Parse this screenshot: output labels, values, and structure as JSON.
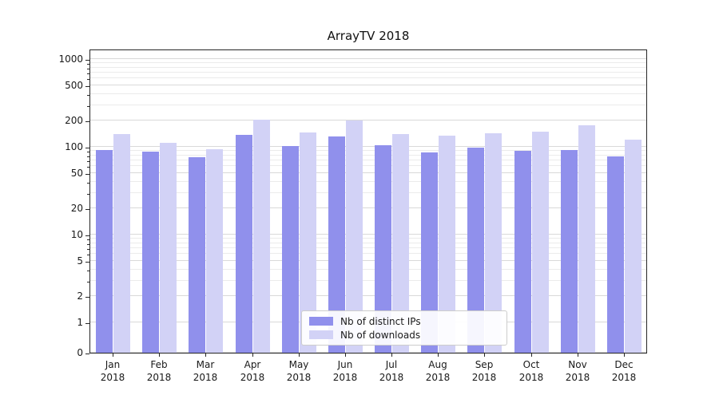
{
  "chart_data": {
    "type": "bar",
    "title": "ArrayTV 2018",
    "categories": [
      [
        "Jan",
        "2018"
      ],
      [
        "Feb",
        "2018"
      ],
      [
        "Mar",
        "2018"
      ],
      [
        "Apr",
        "2018"
      ],
      [
        "May",
        "2018"
      ],
      [
        "Jun",
        "2018"
      ],
      [
        "Jul",
        "2018"
      ],
      [
        "Aug",
        "2018"
      ],
      [
        "Sep",
        "2018"
      ],
      [
        "Oct",
        "2018"
      ],
      [
        "Nov",
        "2018"
      ],
      [
        "Dec",
        "2018"
      ]
    ],
    "series": [
      {
        "name": "Nb of distinct IPs",
        "color": "#9090ec",
        "values": [
          92,
          88,
          76,
          138,
          103,
          130,
          105,
          86,
          97,
          90,
          92,
          78
        ]
      },
      {
        "name": "Nb of downloads",
        "color": "#d2d2f6",
        "values": [
          140,
          112,
          94,
          205,
          147,
          200,
          141,
          135,
          143,
          148,
          175,
          121
        ]
      }
    ],
    "y_axis": {
      "scale": "symlog",
      "ticks": [
        0,
        1,
        2,
        5,
        10,
        20,
        50,
        100,
        200,
        500,
        1000
      ],
      "minor_ticks": [
        3,
        4,
        6,
        7,
        8,
        9,
        30,
        40,
        60,
        70,
        80,
        90,
        300,
        400,
        600,
        700,
        800,
        900
      ],
      "range": [
        0,
        1300
      ]
    },
    "grid": true,
    "legend_position": "lower center"
  },
  "colors": {
    "distinct_ips_bar": "#9090ec",
    "downloads_bar": "#d2d2f6",
    "grid_major": "#d9d9d9",
    "grid_minor": "#ebebeb",
    "spine": "#262626",
    "text": "#1a1a1a",
    "background": "#ffffff"
  }
}
